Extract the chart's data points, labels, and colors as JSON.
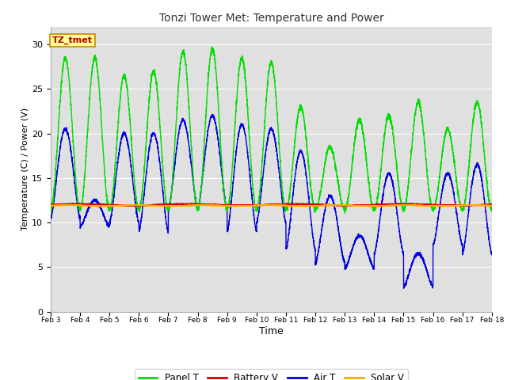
{
  "title": "Tonzi Tower Met: Temperature and Power",
  "xlabel": "Time",
  "ylabel": "Temperature (C) / Power (V)",
  "ylim": [
    0,
    32
  ],
  "yticks": [
    0,
    5,
    10,
    15,
    20,
    25,
    30
  ],
  "plot_bg_color": "#e0e0e0",
  "fig_bg_color": "#ffffff",
  "panel_color": "#00dd00",
  "battery_color": "#dd0000",
  "air_color": "#0000dd",
  "solar_color": "#ffaa00",
  "legend_labels": [
    "Panel T",
    "Battery V",
    "Air T",
    "Solar V"
  ],
  "annotation_text": "TZ_tmet",
  "annotation_bg": "#ffff99",
  "annotation_border": "#cc8800",
  "annotation_text_color": "#aa0000",
  "n_days": 15,
  "start_day": 3,
  "samples_per_day": 288,
  "xlim": [
    3,
    18
  ],
  "xticks": [
    3,
    4,
    5,
    6,
    7,
    8,
    9,
    10,
    11,
    12,
    13,
    14,
    15,
    16,
    17,
    18
  ],
  "xtick_labels": [
    "Feb 3",
    "Feb 4",
    "Feb 5",
    "Feb 6",
    "Feb 7",
    "Feb 8",
    "Feb 9",
    "Feb 10",
    "Feb 11",
    "Feb 12",
    "Feb 13",
    "Feb 14",
    "Feb 15",
    "Feb 16",
    "Feb 17",
    "Feb 18"
  ],
  "panel_peaks": [
    28.5,
    28.5,
    26.5,
    27.0,
    29.2,
    29.5,
    28.5,
    28.0,
    23.0,
    18.5,
    21.5,
    22.0,
    23.5,
    20.5,
    23.5
  ],
  "panel_min": 11.5,
  "air_peaks": [
    20.5,
    12.5,
    20.0,
    20.0,
    21.5,
    22.0,
    21.0,
    20.5,
    18.0,
    13.0,
    8.5,
    15.5,
    6.5,
    15.5,
    16.5
  ],
  "air_mins": [
    10.5,
    9.5,
    10.0,
    9.0,
    11.5,
    11.5,
    9.0,
    10.0,
    7.0,
    5.5,
    4.8,
    6.5,
    2.8,
    7.5,
    6.5
  ]
}
